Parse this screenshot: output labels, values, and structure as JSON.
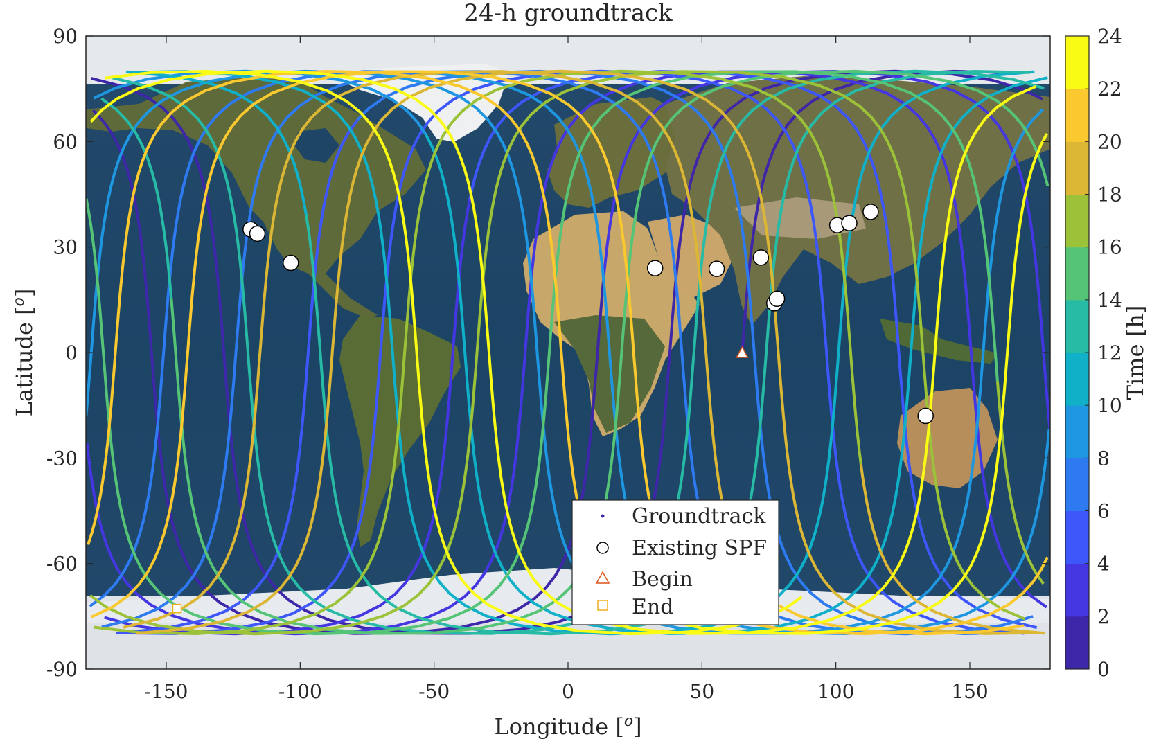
{
  "chart_data": {
    "type": "line",
    "title": "24-h groundtrack",
    "xlabel": "Longitude [",
    "xlabel_sup": "o",
    "xlabel_end": "]",
    "ylabel": "Latitude [",
    "ylabel_sup": "o",
    "ylabel_end": "]",
    "xlim": [
      -180,
      180
    ],
    "ylim": [
      -90,
      90
    ],
    "xticks": [
      -150,
      -100,
      -50,
      0,
      50,
      100,
      150
    ],
    "yticks": [
      90,
      60,
      30,
      0,
      -30,
      -60,
      -90
    ],
    "background": "world-map",
    "grid": false,
    "groundtrack": {
      "begin_lon": 65,
      "begin_lat": 0,
      "end_lon": -146,
      "end_lat": -72.8,
      "inclination_deg": 80,
      "duration_h": 24,
      "northbound_equator_crossings_lon": [
        65,
        38,
        11,
        -16,
        -43,
        -70,
        -97,
        -124,
        -151,
        -178,
        155,
        128,
        101,
        74,
        47,
        20,
        -7,
        -34,
        -61,
        -88,
        -115,
        -142,
        -169,
        164,
        137
      ]
    },
    "existing_spf": [
      {
        "lon": -118.5,
        "lat": 35.0
      },
      {
        "lon": -116.0,
        "lat": 33.8
      },
      {
        "lon": -103.5,
        "lat": 25.5
      },
      {
        "lon": 32.5,
        "lat": 24.0
      },
      {
        "lon": 55.5,
        "lat": 23.8
      },
      {
        "lon": 72.0,
        "lat": 27.0
      },
      {
        "lon": 77.0,
        "lat": 14.0
      },
      {
        "lon": 78.0,
        "lat": 15.3
      },
      {
        "lon": 100.5,
        "lat": 36.2
      },
      {
        "lon": 105.0,
        "lat": 36.8
      },
      {
        "lon": 113.0,
        "lat": 40.0
      },
      {
        "lon": 133.5,
        "lat": -18.0
      }
    ],
    "legend": {
      "placement": "bottom-center",
      "entries": [
        "Groundtrack",
        "Existing SPF",
        "Begin",
        "End"
      ]
    },
    "colorbar": {
      "label": "Time [h]",
      "ticks": [
        0,
        2,
        4,
        6,
        8,
        10,
        12,
        14,
        16,
        18,
        20,
        22,
        24
      ],
      "levels": 12,
      "colors": [
        "#3e26a8",
        "#4436e0",
        "#3d57fa",
        "#2e7bf1",
        "#1e96e0",
        "#0fb0c8",
        "#27bba6",
        "#56c477",
        "#9bc238",
        "#dcb635",
        "#f9c92f",
        "#f9fb15"
      ]
    },
    "colors": {
      "begin_marker": "#d95319",
      "end_marker": "#edb120",
      "spf_fill": "#ffffff",
      "ocean": "#1f4566"
    }
  }
}
